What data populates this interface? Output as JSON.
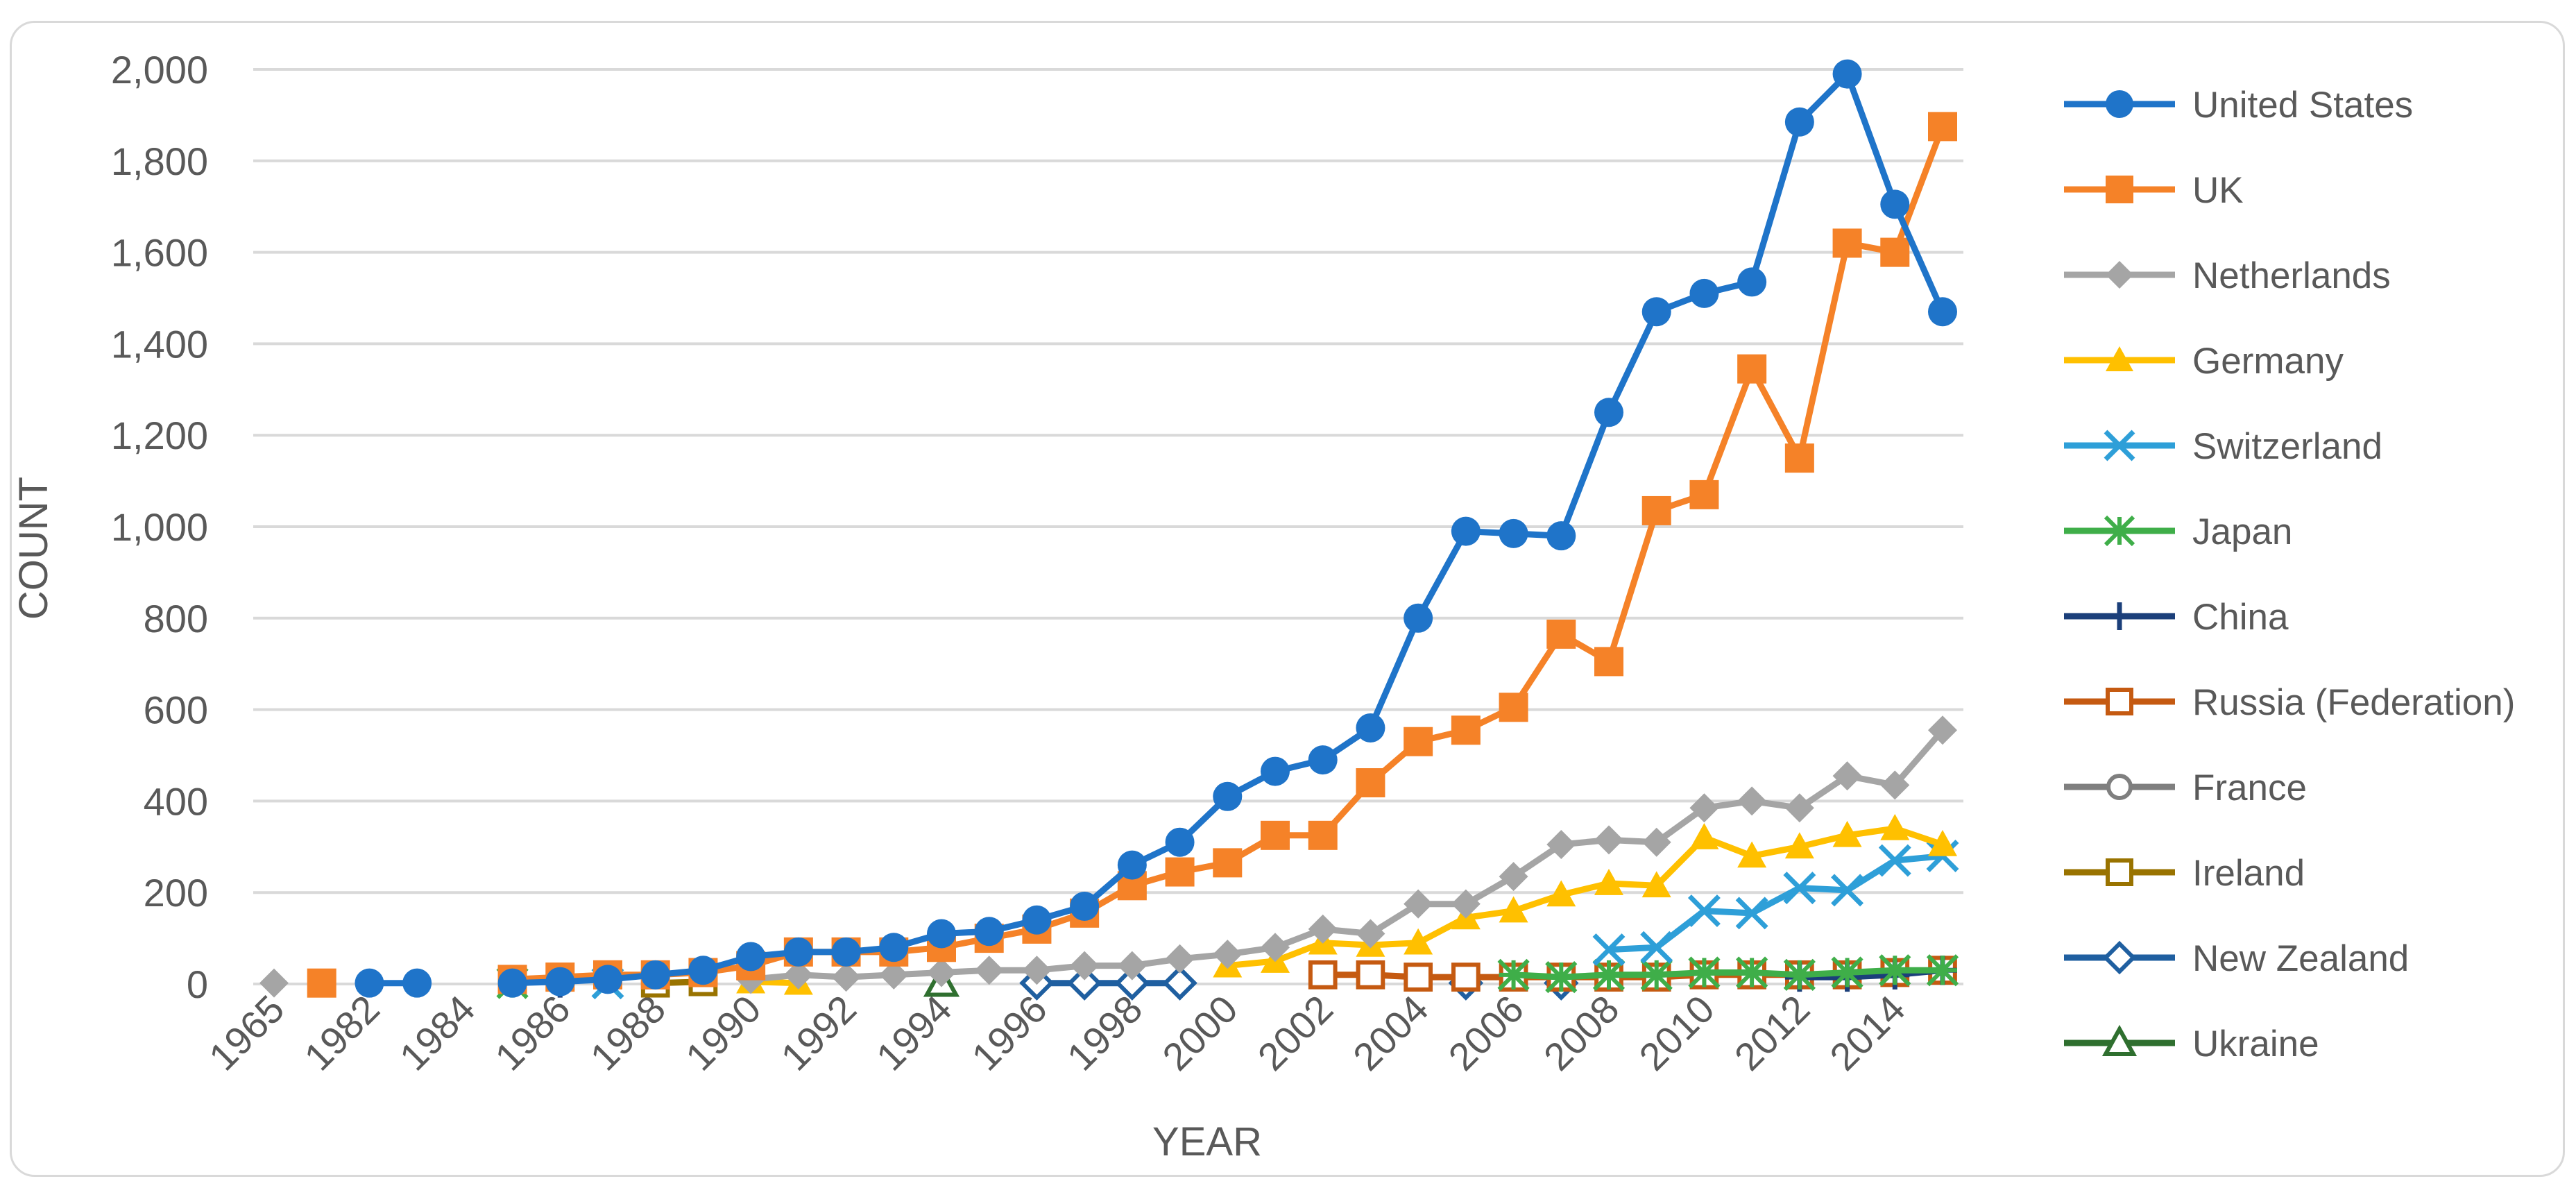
{
  "chart_data": {
    "type": "line",
    "title": "",
    "xlabel": "YEAR",
    "ylabel": "COUNT",
    "ylim": [
      0,
      2000
    ],
    "yticks": [
      0,
      200,
      400,
      600,
      800,
      1000,
      1200,
      1400,
      1600,
      1800,
      2000
    ],
    "ytick_labels": [
      "0",
      "200",
      "400",
      "600",
      "800",
      "1,000",
      "1,200",
      "1,400",
      "1,600",
      "1,800",
      "2,000"
    ],
    "grid": true,
    "legend_position": "right",
    "categories": [
      "1965",
      "1981",
      "1982",
      "1983",
      "1984",
      "1985",
      "1986",
      "1987",
      "1988",
      "1989",
      "1990",
      "1991",
      "1992",
      "1993",
      "1994",
      "1995",
      "1996",
      "1997",
      "1998",
      "1999",
      "2000",
      "2001",
      "2002",
      "2003",
      "2004",
      "2005",
      "2006",
      "2007",
      "2008",
      "2009",
      "2010",
      "2011",
      "2012",
      "2013",
      "2014",
      "2015"
    ],
    "xtick_labels": [
      "1965",
      "",
      "1982",
      "",
      "1984",
      "",
      "1986",
      "",
      "1988",
      "",
      "1990",
      "",
      "1992",
      "",
      "1994",
      "",
      "1996",
      "",
      "1998",
      "",
      "2000",
      "",
      "2002",
      "",
      "2004",
      "",
      "2006",
      "",
      "2008",
      "",
      "2010",
      "",
      "2012",
      "",
      "2014",
      ""
    ],
    "series": [
      {
        "name": "United States",
        "color": "#1f74c9",
        "marker": "circle",
        "values": [
          null,
          null,
          2,
          2,
          null,
          2,
          5,
          10,
          20,
          30,
          60,
          70,
          70,
          80,
          110,
          115,
          140,
          170,
          260,
          310,
          410,
          465,
          490,
          560,
          800,
          990,
          985,
          980,
          1250,
          1470,
          1510,
          1535,
          1885,
          1990,
          1705,
          1470
        ]
      },
      {
        "name": "UK",
        "color": "#f58228",
        "marker": "square",
        "values": [
          null,
          2,
          null,
          null,
          null,
          10,
          15,
          20,
          20,
          25,
          40,
          70,
          70,
          70,
          80,
          100,
          120,
          155,
          215,
          245,
          265,
          325,
          325,
          440,
          530,
          555,
          605,
          765,
          705,
          1035,
          1070,
          1345,
          1150,
          1620,
          1600,
          1875
        ]
      },
      {
        "name": "Netherlands",
        "color": "#a5a5a5",
        "marker": "diamond",
        "values": [
          2,
          null,
          null,
          null,
          null,
          null,
          null,
          null,
          null,
          null,
          10,
          20,
          15,
          20,
          25,
          30,
          30,
          40,
          40,
          55,
          65,
          80,
          120,
          110,
          175,
          175,
          235,
          305,
          315,
          310,
          385,
          400,
          385,
          455,
          435,
          555
        ]
      },
      {
        "name": "Germany",
        "color": "#ffc000",
        "marker": "triangle",
        "values": [
          null,
          null,
          null,
          null,
          null,
          null,
          null,
          null,
          null,
          null,
          5,
          2,
          null,
          null,
          null,
          null,
          null,
          null,
          null,
          null,
          40,
          50,
          90,
          85,
          90,
          145,
          160,
          195,
          220,
          215,
          320,
          280,
          300,
          325,
          340,
          305
        ]
      },
      {
        "name": "Switzerland",
        "color": "#2e9fd8",
        "marker": "x",
        "values": [
          null,
          null,
          null,
          null,
          null,
          null,
          null,
          2,
          null,
          null,
          null,
          null,
          null,
          null,
          null,
          null,
          null,
          null,
          null,
          null,
          null,
          null,
          null,
          null,
          null,
          null,
          null,
          null,
          75,
          80,
          160,
          155,
          210,
          205,
          270,
          280
        ]
      },
      {
        "name": "Japan",
        "color": "#3fae49",
        "marker": "star",
        "values": [
          null,
          null,
          null,
          null,
          null,
          2,
          null,
          null,
          null,
          null,
          null,
          null,
          null,
          null,
          null,
          null,
          null,
          null,
          null,
          null,
          null,
          null,
          null,
          null,
          null,
          null,
          20,
          15,
          20,
          20,
          25,
          25,
          20,
          25,
          30,
          30
        ]
      },
      {
        "name": "China",
        "color": "#1b3f7a",
        "marker": "plus",
        "values": [
          null,
          null,
          null,
          null,
          null,
          null,
          2,
          null,
          null,
          null,
          null,
          null,
          null,
          null,
          null,
          null,
          null,
          null,
          null,
          null,
          null,
          null,
          null,
          null,
          null,
          null,
          null,
          null,
          null,
          null,
          null,
          null,
          15,
          15,
          20,
          30
        ]
      },
      {
        "name": "Russia (Federation)",
        "color": "#c55a11",
        "marker": "square-open",
        "values": [
          null,
          null,
          null,
          null,
          null,
          null,
          null,
          null,
          null,
          null,
          null,
          null,
          null,
          null,
          null,
          null,
          null,
          null,
          null,
          null,
          null,
          null,
          20,
          20,
          15,
          15,
          15,
          15,
          15,
          15,
          20,
          20,
          20,
          20,
          25,
          30
        ]
      },
      {
        "name": "France",
        "color": "#7f7f7f",
        "marker": "circle-open",
        "values": [
          null,
          null,
          null,
          null,
          null,
          null,
          null,
          null,
          null,
          null,
          null,
          null,
          null,
          null,
          null,
          null,
          null,
          null,
          null,
          null,
          null,
          null,
          null,
          null,
          null,
          null,
          null,
          null,
          null,
          null,
          null,
          null,
          null,
          null,
          null,
          null
        ]
      },
      {
        "name": "Ireland",
        "color": "#997300",
        "marker": "square-open",
        "values": [
          null,
          null,
          null,
          null,
          null,
          null,
          null,
          null,
          2,
          5,
          null,
          null,
          null,
          null,
          null,
          null,
          null,
          null,
          null,
          null,
          null,
          null,
          null,
          null,
          null,
          null,
          null,
          null,
          null,
          null,
          null,
          null,
          null,
          null,
          null,
          null
        ]
      },
      {
        "name": "New Zealand",
        "color": "#1f5fa0",
        "marker": "diamond-open",
        "values": [
          null,
          null,
          null,
          null,
          null,
          null,
          null,
          null,
          null,
          null,
          null,
          null,
          null,
          null,
          null,
          null,
          2,
          2,
          2,
          2,
          null,
          null,
          null,
          null,
          null,
          2,
          null,
          2,
          null,
          null,
          null,
          null,
          null,
          null,
          null,
          null
        ]
      },
      {
        "name": "Ukraine",
        "color": "#2f6f2f",
        "marker": "triangle-open",
        "values": [
          null,
          null,
          null,
          null,
          null,
          null,
          null,
          null,
          null,
          null,
          null,
          null,
          null,
          null,
          2,
          null,
          null,
          null,
          null,
          null,
          null,
          null,
          null,
          null,
          null,
          null,
          null,
          null,
          null,
          null,
          null,
          null,
          null,
          null,
          null,
          null
        ]
      }
    ]
  }
}
